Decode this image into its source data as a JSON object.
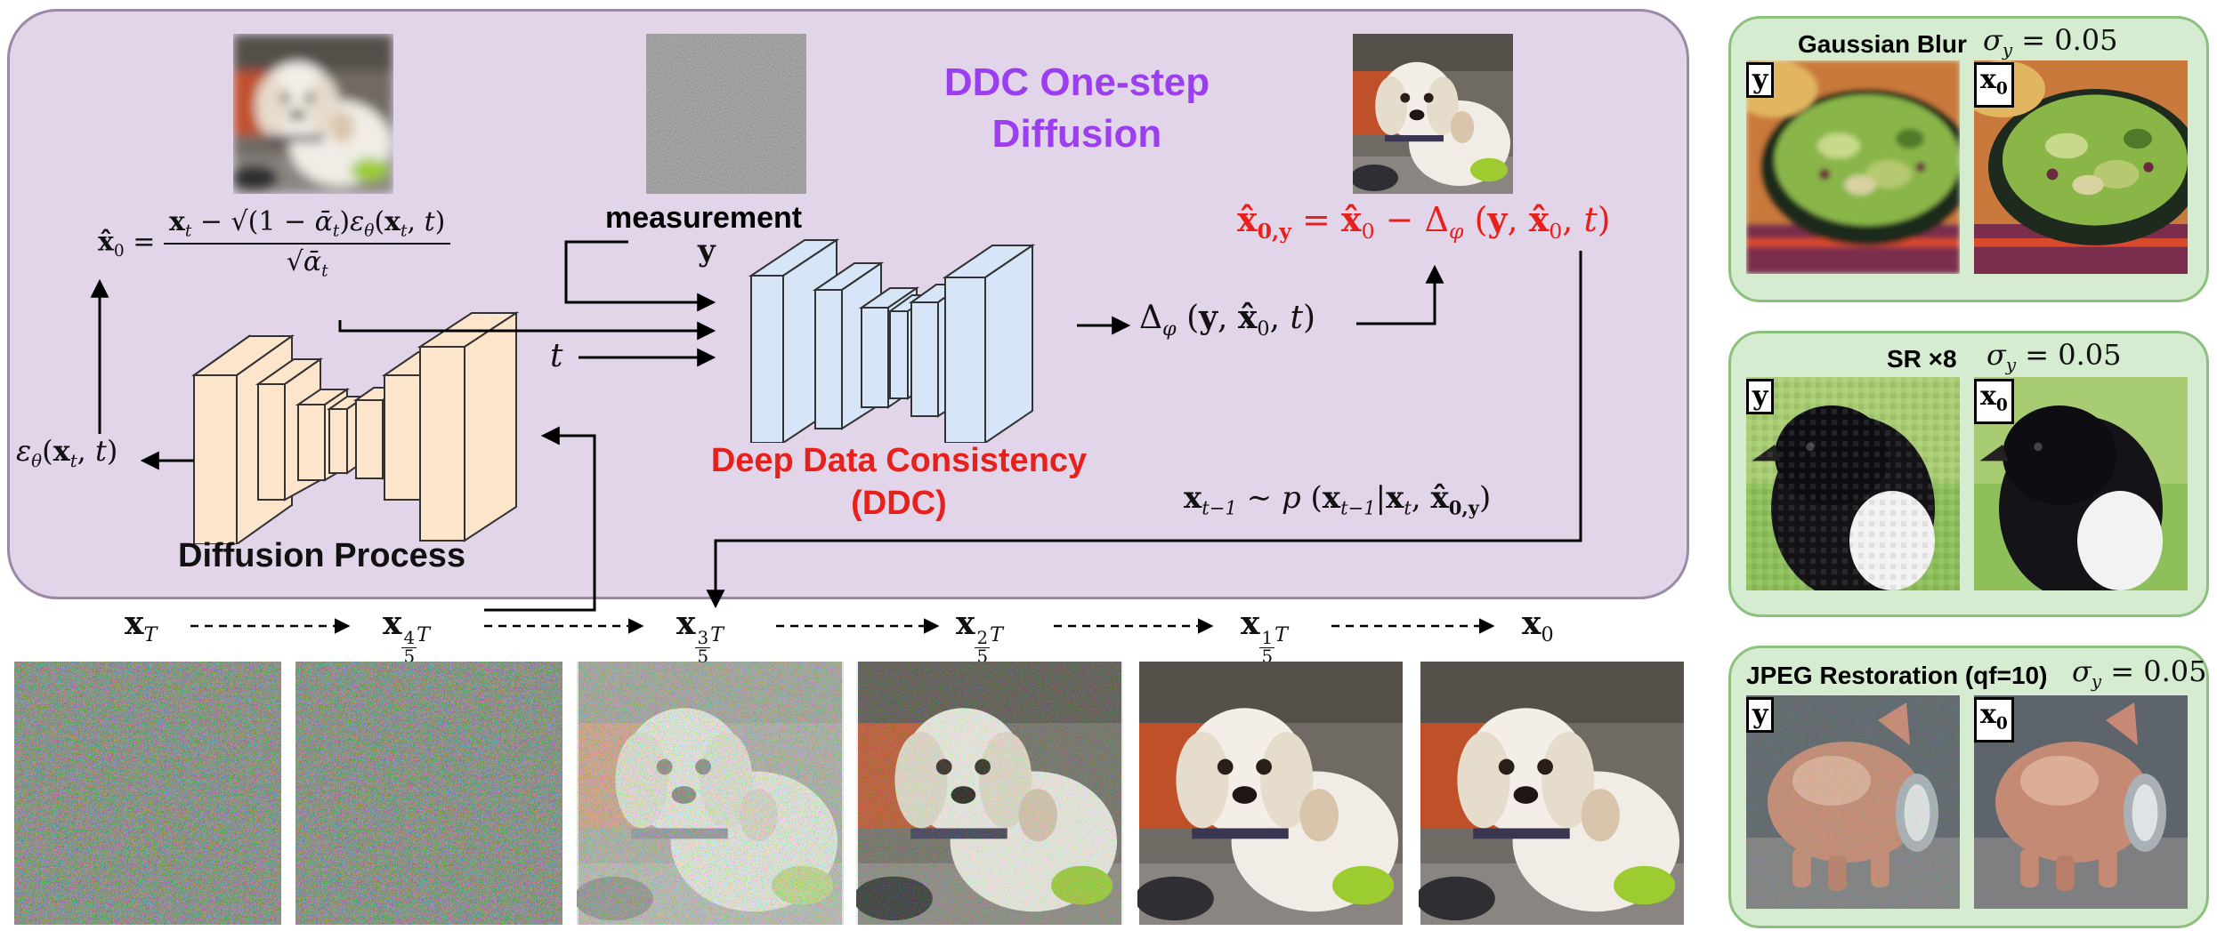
{
  "main_panel": {
    "title_line1": "DDC One-step",
    "title_line2": "Diffusion",
    "diffusion_label": "Diffusion Process",
    "ddc_label_line1": "Deep Data Consistency",
    "ddc_label_line2": "(DDC)",
    "measurement_label": "measurement",
    "measurement_symbol": "y",
    "t_input": "t"
  },
  "timeline": {
    "labels": [
      "x_T",
      "x_{4/5 T}",
      "x_{3/5 T}",
      "x_{2/5 T}",
      "x_{1/5 T}",
      "x_0"
    ]
  },
  "examples": [
    {
      "title": "Gaussian Blur",
      "sigma": "σ_y = 0.05",
      "label_left": "y",
      "label_right": "x0"
    },
    {
      "title": "SR ×8",
      "sigma": "σ_y = 0.05",
      "label_left": "y",
      "label_right": "x0"
    },
    {
      "title": "JPEG Restoration (qf=10)",
      "sigma": "σ_y = 0.05",
      "label_left": "y",
      "label_right": "x0"
    }
  ],
  "colors": {
    "panel_fill": "#e3d5e9",
    "panel_border": "#9a8aa8",
    "title": "#9b3ef0",
    "ddc_red": "#e8201c",
    "encoder_fill": "#fde5cc",
    "ddc_fill": "#d6e6f8",
    "example_fill": "#d5ecd0",
    "example_border": "#8cc07e"
  }
}
